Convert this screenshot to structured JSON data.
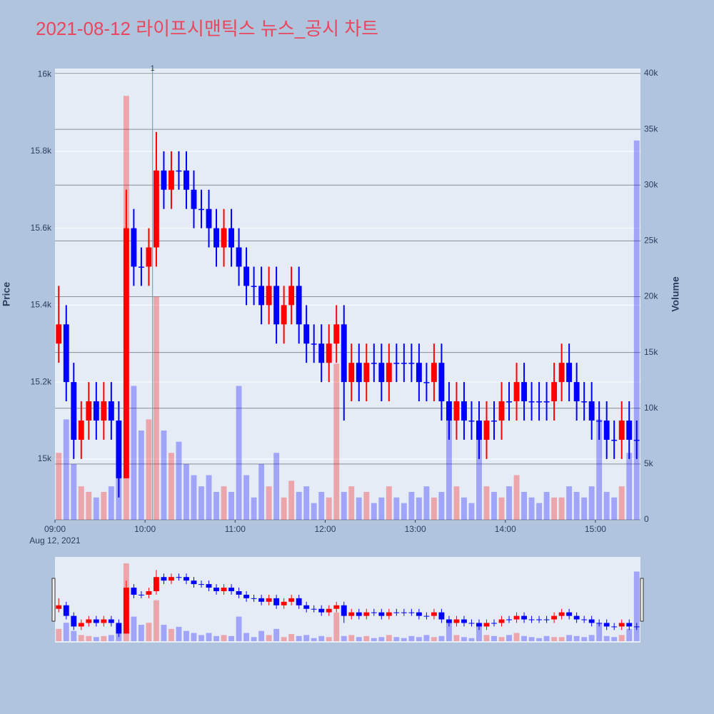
{
  "chart_data": {
    "type": "candlestick",
    "title": "2021-08-12 라이프시맨틱스 뉴스_공시 차트",
    "y_title": "Price",
    "y2_title": "Volume",
    "x_date_label": "Aug 12, 2021",
    "x": [
      "09:00",
      "09:05",
      "09:10",
      "09:15",
      "09:20",
      "09:25",
      "09:30",
      "09:35",
      "09:40",
      "09:45",
      "09:50",
      "09:55",
      "10:00",
      "10:05",
      "10:10",
      "10:15",
      "10:20",
      "10:25",
      "10:30",
      "10:35",
      "10:40",
      "10:45",
      "10:50",
      "10:55",
      "11:00",
      "11:05",
      "11:10",
      "11:15",
      "11:20",
      "11:25",
      "11:30",
      "11:35",
      "11:40",
      "11:45",
      "11:50",
      "11:55",
      "12:00",
      "12:05",
      "12:10",
      "12:15",
      "12:20",
      "12:25",
      "12:30",
      "12:35",
      "12:40",
      "12:45",
      "12:50",
      "12:55",
      "13:00",
      "13:05",
      "13:10",
      "13:15",
      "13:20",
      "13:25",
      "13:30",
      "13:35",
      "13:40",
      "13:45",
      "13:50",
      "13:55",
      "14:00",
      "14:05",
      "14:10",
      "14:15",
      "14:20",
      "14:25",
      "14:30",
      "14:35",
      "14:40",
      "14:45",
      "14:50",
      "14:55",
      "15:00",
      "15:05",
      "15:10",
      "15:15",
      "15:20",
      "15:25"
    ],
    "open": [
      15300,
      15350,
      15200,
      15050,
      15100,
      15150,
      15100,
      15150,
      15100,
      14950,
      15600,
      15500,
      15500,
      15550,
      15750,
      15700,
      15750,
      15750,
      15700,
      15650,
      15650,
      15600,
      15550,
      15600,
      15550,
      15500,
      15450,
      15450,
      15400,
      15450,
      15350,
      15400,
      15450,
      15350,
      15300,
      15300,
      15250,
      15300,
      15350,
      15200,
      15250,
      15200,
      15250,
      15250,
      15200,
      15250,
      15250,
      15250,
      15250,
      15200,
      15200,
      15250,
      15150,
      15100,
      15150,
      15100,
      15100,
      15050,
      15100,
      15100,
      15150,
      15150,
      15200,
      15150,
      15150,
      15150,
      15150,
      15200,
      15250,
      15200,
      15150,
      15150,
      15100,
      15100,
      15050,
      15050,
      15100,
      15050
    ],
    "high": [
      15450,
      15400,
      15250,
      15150,
      15200,
      15200,
      15200,
      15200,
      15150,
      15700,
      15650,
      15550,
      15600,
      15850,
      15800,
      15800,
      15800,
      15800,
      15750,
      15700,
      15700,
      15650,
      15650,
      15650,
      15600,
      15550,
      15500,
      15500,
      15500,
      15500,
      15450,
      15500,
      15500,
      15400,
      15350,
      15350,
      15350,
      15400,
      15400,
      15300,
      15300,
      15300,
      15300,
      15300,
      15300,
      15300,
      15300,
      15300,
      15300,
      15250,
      15300,
      15300,
      15200,
      15200,
      15200,
      15150,
      15150,
      15150,
      15150,
      15200,
      15200,
      15250,
      15250,
      15200,
      15200,
      15200,
      15250,
      15300,
      15300,
      15250,
      15200,
      15200,
      15150,
      15150,
      15100,
      15150,
      15150,
      15100
    ],
    "low": [
      15250,
      15150,
      15000,
      15000,
      15050,
      15050,
      15050,
      15050,
      14900,
      14950,
      15450,
      15450,
      15450,
      15500,
      15650,
      15650,
      15700,
      15650,
      15600,
      15600,
      15550,
      15500,
      15500,
      15500,
      15450,
      15400,
      15400,
      15350,
      15350,
      15300,
      15300,
      15350,
      15300,
      15250,
      15250,
      15200,
      15200,
      15250,
      15100,
      15150,
      15150,
      15150,
      15200,
      15150,
      15150,
      15200,
      15200,
      15200,
      15150,
      15150,
      15150,
      15100,
      15050,
      15050,
      15050,
      15050,
      15000,
      15000,
      15050,
      15050,
      15100,
      15100,
      15100,
      15100,
      15100,
      15100,
      15100,
      15150,
      15150,
      15100,
      15100,
      15050,
      15050,
      15000,
      15000,
      15000,
      15000,
      15000
    ],
    "close": [
      15350,
      15200,
      15050,
      15100,
      15150,
      15100,
      15150,
      15100,
      14950,
      15600,
      15500,
      15500,
      15550,
      15750,
      15700,
      15750,
      15750,
      15700,
      15650,
      15650,
      15600,
      15550,
      15600,
      15550,
      15500,
      15450,
      15450,
      15400,
      15450,
      15350,
      15400,
      15450,
      15350,
      15300,
      15300,
      15250,
      15300,
      15350,
      15200,
      15250,
      15200,
      15250,
      15250,
      15200,
      15250,
      15250,
      15250,
      15250,
      15200,
      15200,
      15250,
      15150,
      15100,
      15150,
      15100,
      15100,
      15050,
      15100,
      15100,
      15150,
      15150,
      15200,
      15150,
      15150,
      15150,
      15150,
      15200,
      15250,
      15200,
      15150,
      15150,
      15100,
      15100,
      15050,
      15050,
      15100,
      15050,
      15050
    ],
    "volume": [
      6000,
      9000,
      5000,
      3000,
      2500,
      2000,
      2500,
      3000,
      4000,
      38000,
      12000,
      8000,
      9000,
      20000,
      8000,
      6000,
      7000,
      5000,
      4000,
      3000,
      4000,
      2500,
      3000,
      2500,
      12000,
      4000,
      2000,
      5000,
      3000,
      6000,
      2000,
      3500,
      2500,
      3000,
      1500,
      2500,
      2000,
      14000,
      2500,
      3000,
      2000,
      2500,
      1500,
      2000,
      3000,
      2000,
      1500,
      2500,
      2000,
      3000,
      2000,
      2500,
      9000,
      3000,
      2000,
      1500,
      8000,
      3000,
      2500,
      2000,
      3000,
      4000,
      2500,
      2000,
      1500,
      2500,
      2000,
      2000,
      3000,
      2500,
      2000,
      3000,
      9000,
      2500,
      2000,
      3000,
      6000,
      34000
    ],
    "increasing_color": "#ff0000",
    "decreasing_color": "#0000ff",
    "xlim": [
      "09:00",
      "15:30"
    ],
    "xticks": [
      "09:00",
      "10:00",
      "11:00",
      "12:00",
      "13:00",
      "14:00",
      "15:00"
    ],
    "ylim": [
      14842,
      16015
    ],
    "yticks": [
      {
        "value": 15000,
        "label": "15k"
      },
      {
        "value": 15200,
        "label": "15.2k"
      },
      {
        "value": 15400,
        "label": "15.4k"
      },
      {
        "value": 15600,
        "label": "15.6k"
      },
      {
        "value": 15800,
        "label": "15.8k"
      },
      {
        "value": 16000,
        "label": "16k"
      }
    ],
    "y2lim": [
      0,
      40450
    ],
    "y2ticks": [
      0,
      {
        "value": 5000,
        "label": "5k"
      },
      {
        "value": 10000,
        "label": "10k"
      },
      {
        "value": 15000,
        "label": "15k"
      },
      {
        "value": 20000,
        "label": "20k"
      },
      {
        "value": 25000,
        "label": "25k"
      },
      {
        "value": 30000,
        "label": "30k"
      },
      {
        "value": 35000,
        "label": "35k"
      },
      {
        "value": 40000,
        "label": "40k"
      }
    ],
    "grid": true,
    "annotations": [
      {
        "x": "10:05",
        "text": "1"
      }
    ],
    "range_slider": true
  }
}
